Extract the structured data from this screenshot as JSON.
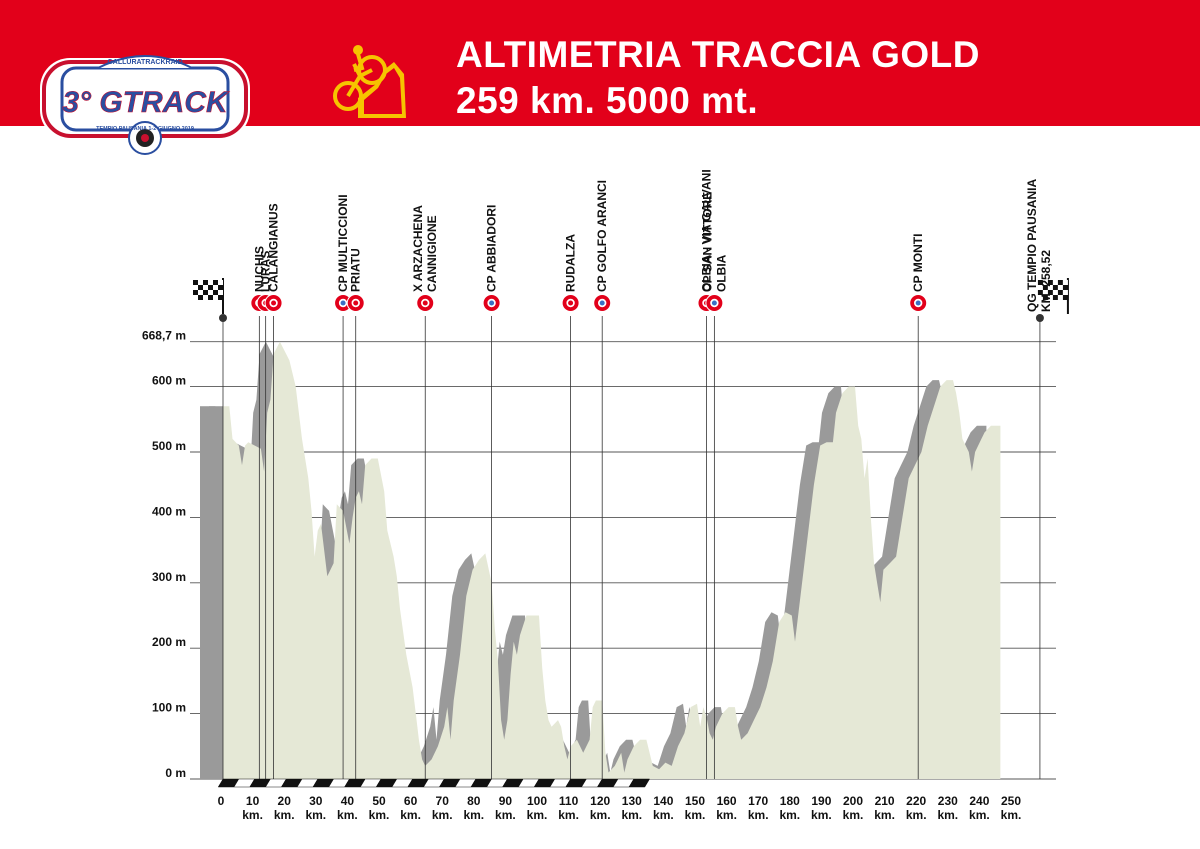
{
  "header": {
    "title_line1": "ALTIMETRIA TRACCIA GOLD",
    "title_line2": "259 km. 5000 mt.",
    "logo_main": "3° GTRACK",
    "logo_top_text": "GALLURATRACKRAID",
    "logo_bottom_text": "TEMPIO PAUSANIA 1-2 GIUGNO 2019",
    "logo_icon": "rally-badge-icon",
    "title_icon": "mountain-bike-icon"
  },
  "colors": {
    "header_red": "#e2001a",
    "profile_fill": "#e5e8d6",
    "shadow_fill": "#9a9a9a",
    "marker_red": "#e2001a",
    "marker_blue": "#3a6fc4",
    "title_icon_yellow": "#f6c400"
  },
  "chart_data": {
    "type": "area",
    "xlabel": "",
    "ylabel": "",
    "xlim": [
      0,
      260
    ],
    "ylim": [
      0,
      668.7
    ],
    "y_ticks": [
      {
        "value": 0,
        "label": "0 m"
      },
      {
        "value": 100,
        "label": "100 m"
      },
      {
        "value": 200,
        "label": "200 m"
      },
      {
        "value": 300,
        "label": "300 m"
      },
      {
        "value": 400,
        "label": "400 m"
      },
      {
        "value": 500,
        "label": "500 m"
      },
      {
        "value": 600,
        "label": "600 m"
      },
      {
        "value": 668.7,
        "label": "668,7 m"
      }
    ],
    "x_ticks": [
      {
        "value": 0,
        "label": "0",
        "unit": ""
      },
      {
        "value": 10,
        "label": "10",
        "unit": "km."
      },
      {
        "value": 20,
        "label": "20",
        "unit": "km."
      },
      {
        "value": 30,
        "label": "30",
        "unit": "km."
      },
      {
        "value": 40,
        "label": "40",
        "unit": "km."
      },
      {
        "value": 50,
        "label": "50",
        "unit": "km."
      },
      {
        "value": 60,
        "label": "60",
        "unit": "km."
      },
      {
        "value": 70,
        "label": "70",
        "unit": "km."
      },
      {
        "value": 80,
        "label": "80",
        "unit": "km."
      },
      {
        "value": 90,
        "label": "90",
        "unit": "km."
      },
      {
        "value": 100,
        "label": "100",
        "unit": "km."
      },
      {
        "value": 110,
        "label": "110",
        "unit": "km."
      },
      {
        "value": 120,
        "label": "120",
        "unit": "km."
      },
      {
        "value": 130,
        "label": "130",
        "unit": "km."
      },
      {
        "value": 140,
        "label": "140",
        "unit": "km."
      },
      {
        "value": 150,
        "label": "150",
        "unit": "km."
      },
      {
        "value": 160,
        "label": "160",
        "unit": "km."
      },
      {
        "value": 170,
        "label": "170",
        "unit": "km."
      },
      {
        "value": 180,
        "label": "180",
        "unit": "km."
      },
      {
        "value": 190,
        "label": "190",
        "unit": "km."
      },
      {
        "value": 200,
        "label": "200",
        "unit": "km."
      },
      {
        "value": 210,
        "label": "210",
        "unit": "km."
      },
      {
        "value": 220,
        "label": "220",
        "unit": "km."
      },
      {
        "value": 230,
        "label": "230",
        "unit": "km."
      },
      {
        "value": 240,
        "label": "240",
        "unit": "km."
      },
      {
        "value": 250,
        "label": "250",
        "unit": "km."
      }
    ],
    "profile": [
      [
        0,
        570
      ],
      [
        2,
        570
      ],
      [
        3,
        520
      ],
      [
        5,
        510
      ],
      [
        6,
        480
      ],
      [
        7,
        510
      ],
      [
        8,
        515
      ],
      [
        10,
        510
      ],
      [
        12,
        505
      ],
      [
        13,
        470
      ],
      [
        14,
        560
      ],
      [
        15,
        580
      ],
      [
        16,
        650
      ],
      [
        18,
        668.7
      ],
      [
        21,
        640
      ],
      [
        23,
        600
      ],
      [
        25,
        520
      ],
      [
        27,
        460
      ],
      [
        28,
        410
      ],
      [
        29,
        340
      ],
      [
        30,
        380
      ],
      [
        31,
        390
      ],
      [
        33,
        310
      ],
      [
        35,
        330
      ],
      [
        36,
        420
      ],
      [
        38,
        410
      ],
      [
        40,
        360
      ],
      [
        41,
        400
      ],
      [
        42,
        430
      ],
      [
        43,
        440
      ],
      [
        44,
        420
      ],
      [
        45,
        480
      ],
      [
        47,
        490
      ],
      [
        49,
        490
      ],
      [
        51,
        440
      ],
      [
        52,
        380
      ],
      [
        54,
        340
      ],
      [
        55,
        310
      ],
      [
        56,
        260
      ],
      [
        58,
        190
      ],
      [
        60,
        140
      ],
      [
        61,
        100
      ],
      [
        62,
        60
      ],
      [
        63,
        30
      ],
      [
        64,
        20
      ],
      [
        66,
        30
      ],
      [
        68,
        50
      ],
      [
        70,
        80
      ],
      [
        71,
        110
      ],
      [
        72,
        60
      ],
      [
        73,
        120
      ],
      [
        75,
        190
      ],
      [
        77,
        280
      ],
      [
        79,
        320
      ],
      [
        81,
        335
      ],
      [
        83,
        345
      ],
      [
        85,
        300
      ],
      [
        86,
        230
      ],
      [
        87,
        180
      ],
      [
        88,
        90
      ],
      [
        89,
        60
      ],
      [
        90,
        90
      ],
      [
        91,
        160
      ],
      [
        92,
        210
      ],
      [
        93,
        190
      ],
      [
        94,
        220
      ],
      [
        96,
        250
      ],
      [
        98,
        250
      ],
      [
        100,
        250
      ],
      [
        101,
        170
      ],
      [
        102,
        120
      ],
      [
        103,
        90
      ],
      [
        104,
        80
      ],
      [
        106,
        90
      ],
      [
        107,
        80
      ],
      [
        108,
        50
      ],
      [
        109,
        30
      ],
      [
        110,
        50
      ],
      [
        112,
        60
      ],
      [
        114,
        40
      ],
      [
        116,
        60
      ],
      [
        117,
        110
      ],
      [
        118,
        120
      ],
      [
        120,
        120
      ],
      [
        121,
        40
      ],
      [
        122,
        10
      ],
      [
        124,
        20
      ],
      [
        126,
        40
      ],
      [
        127,
        10
      ],
      [
        128,
        30
      ],
      [
        130,
        50
      ],
      [
        132,
        60
      ],
      [
        134,
        60
      ],
      [
        136,
        20
      ],
      [
        138,
        15
      ],
      [
        140,
        25
      ],
      [
        142,
        20
      ],
      [
        144,
        50
      ],
      [
        146,
        70
      ],
      [
        148,
        110
      ],
      [
        150,
        115
      ],
      [
        151,
        80
      ],
      [
        152,
        110
      ],
      [
        153,
        95
      ],
      [
        154,
        70
      ],
      [
        155,
        60
      ],
      [
        156,
        80
      ],
      [
        158,
        100
      ],
      [
        160,
        110
      ],
      [
        162,
        110
      ],
      [
        163,
        80
      ],
      [
        164,
        60
      ],
      [
        166,
        70
      ],
      [
        168,
        90
      ],
      [
        170,
        110
      ],
      [
        172,
        140
      ],
      [
        174,
        180
      ],
      [
        176,
        240
      ],
      [
        178,
        255
      ],
      [
        180,
        250
      ],
      [
        181,
        210
      ],
      [
        183,
        290
      ],
      [
        185,
        370
      ],
      [
        187,
        450
      ],
      [
        189,
        510
      ],
      [
        191,
        515
      ],
      [
        193,
        515
      ],
      [
        194,
        560
      ],
      [
        196,
        590
      ],
      [
        198,
        600
      ],
      [
        200,
        600
      ],
      [
        201,
        540
      ],
      [
        202,
        520
      ],
      [
        203,
        460
      ],
      [
        204,
        490
      ],
      [
        205,
        400
      ],
      [
        206,
        330
      ],
      [
        207,
        300
      ],
      [
        208,
        270
      ],
      [
        209,
        320
      ],
      [
        211,
        330
      ],
      [
        213,
        340
      ],
      [
        215,
        400
      ],
      [
        217,
        460
      ],
      [
        219,
        480
      ],
      [
        221,
        500
      ],
      [
        223,
        540
      ],
      [
        225,
        570
      ],
      [
        227,
        600
      ],
      [
        229,
        610
      ],
      [
        231,
        610
      ],
      [
        232,
        590
      ],
      [
        233,
        560
      ],
      [
        234,
        520
      ],
      [
        236,
        500
      ],
      [
        237,
        470
      ],
      [
        238,
        500
      ],
      [
        240,
        520
      ],
      [
        241,
        530
      ],
      [
        243,
        540
      ],
      [
        245,
        540
      ],
      [
        246,
        540
      ]
    ]
  },
  "waypoints": [
    {
      "km": 0,
      "label": "",
      "type": "start",
      "icon": "checkered-flag-icon"
    },
    {
      "km": 11.5,
      "label": "NUCHIS",
      "type": "red"
    },
    {
      "km": 13.5,
      "label": "LURAS",
      "type": "red"
    },
    {
      "km": 16,
      "label": "CALANGIANUS",
      "type": "red"
    },
    {
      "km": 38,
      "label": "CP MULTICCIONI",
      "type": "blue"
    },
    {
      "km": 42,
      "label": "PRIATU",
      "type": "red"
    },
    {
      "km": 64,
      "label": "X ARZACHENA CANNIGIONE",
      "type": "red",
      "line1": "X ARZACHENA",
      "line2": "CANNIGIONE"
    },
    {
      "km": 85,
      "label": "CP ABBIADORI",
      "type": "blue"
    },
    {
      "km": 110,
      "label": "RUDALZA",
      "type": "red"
    },
    {
      "km": 120,
      "label": "CP GOLFO ARANCI",
      "type": "blue"
    },
    {
      "km": 153,
      "label": "OLBIA - VIA GALVANI",
      "type": "red"
    },
    {
      "km": 155.5,
      "label": "CP SAN VITTORE OLBIA",
      "type": "blue",
      "line1": "CP SAN VITTORE",
      "line2": "OLBIA"
    },
    {
      "km": 220,
      "label": "CP MONTI",
      "type": "blue"
    },
    {
      "km": 258.52,
      "label": "QG TEMPIO PAUSANIA KM. 258,52",
      "type": "finish",
      "icon": "checkered-flag-icon",
      "line1": "QG TEMPIO PAUSANIA",
      "line2": "KM. 258,52"
    }
  ]
}
